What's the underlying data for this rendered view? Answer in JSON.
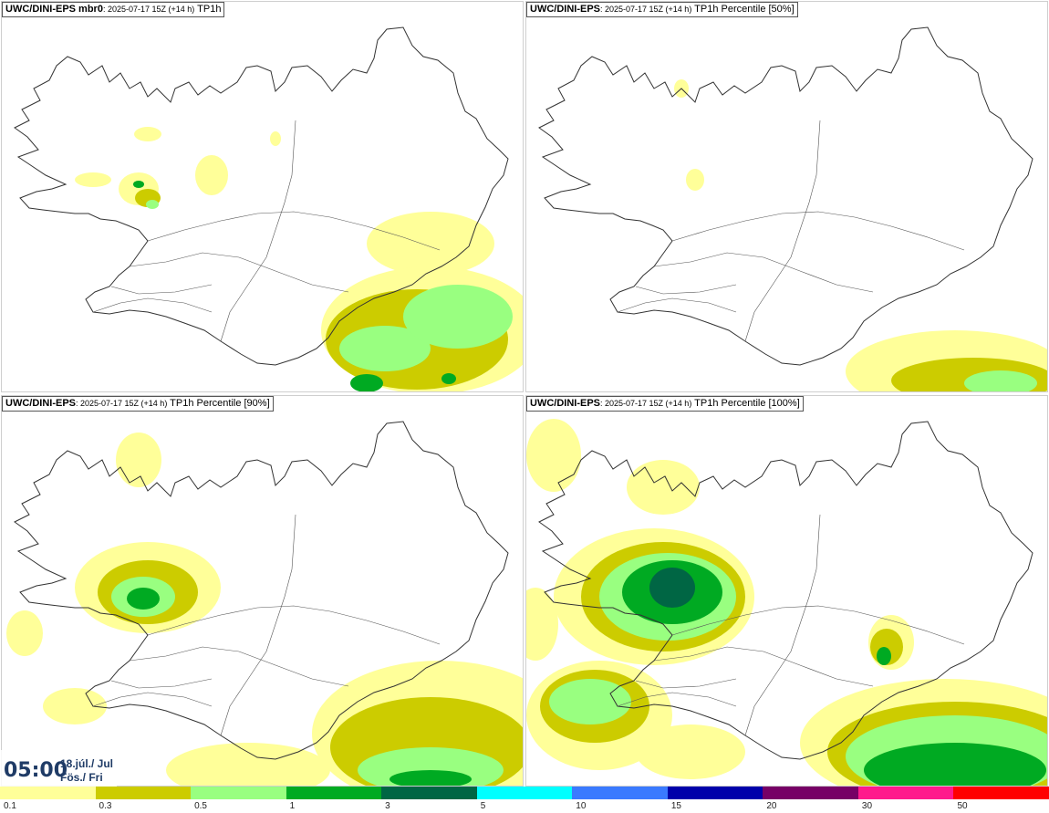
{
  "panels": [
    {
      "title_bold": "UWC/DINI-EPS mbr0",
      "title_small": ": 2025-07-17 15Z (+14 h)",
      "title_rest": " TP1h"
    },
    {
      "title_bold": "UWC/DINI-EPS",
      "title_small": ": 2025-07-17 15Z (+14 h)",
      "title_rest": " TP1h Percentile [50%]"
    },
    {
      "title_bold": "UWC/DINI-EPS",
      "title_small": ": 2025-07-17 15Z (+14 h)",
      "title_rest": " TP1h Percentile [90%]"
    },
    {
      "title_bold": "UWC/DINI-EPS",
      "title_small": ": 2025-07-17 15Z (+14 h)",
      "title_rest": " TP1h Percentile [100%]"
    }
  ],
  "valid_time": {
    "time": "05:00",
    "date_line1": "18.júl./ Jul",
    "date_line2": "Fös./ Fri"
  },
  "legend": {
    "labels": [
      "0.1",
      "0.3",
      "0.5",
      "1",
      "3",
      "5",
      "10",
      "15",
      "20",
      "30",
      "50"
    ],
    "colors": [
      "#ffff99",
      "#cccc00",
      "#99ff80",
      "#00aa22",
      "#006644",
      "#00ffff",
      "#3a7aff",
      "#0000aa",
      "#770066",
      "#ff1a8c",
      "#ff0000"
    ]
  },
  "map_colors": {
    "p01": "#ffff99",
    "p03": "#cccc00",
    "p05": "#99ff80",
    "p1": "#00aa22",
    "p3": "#006644",
    "outline": "#333333"
  }
}
